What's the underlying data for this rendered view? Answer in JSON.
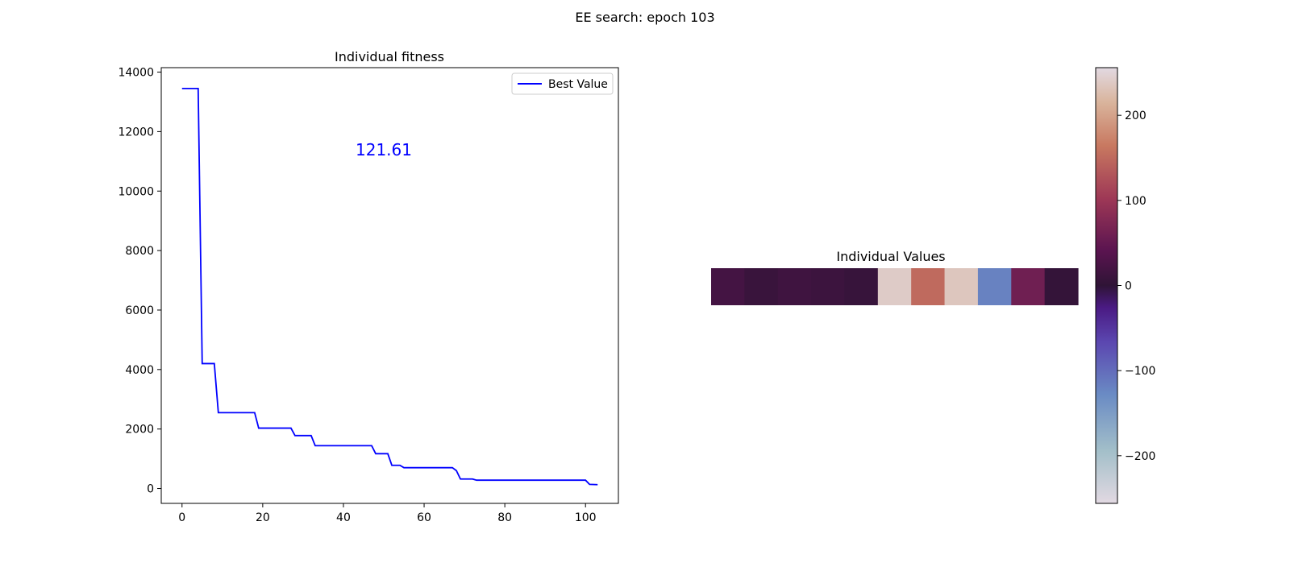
{
  "figure": {
    "suptitle": "EE search: epoch 103"
  },
  "chart_data": [
    {
      "type": "line",
      "title": "Individual fitness",
      "xlabel": "",
      "ylabel": "",
      "xlim": [
        -5.15,
        108.15
      ],
      "ylim": [
        -500,
        14150
      ],
      "xticks": [
        0,
        20,
        40,
        60,
        80,
        100
      ],
      "yticks": [
        0,
        2000,
        4000,
        6000,
        8000,
        10000,
        12000,
        14000
      ],
      "grid": false,
      "legend": {
        "position": "top-right"
      },
      "annotation": {
        "text": "121.61",
        "x": 50,
        "y": 11200,
        "color": "#0000ff"
      },
      "series": [
        {
          "name": "Best Value",
          "color": "#0000ff",
          "x": [
            0,
            4,
            5,
            8,
            9,
            18,
            19,
            27,
            28,
            32,
            33,
            47,
            48,
            51,
            52,
            54,
            55,
            67,
            68,
            69,
            72,
            73,
            100,
            101,
            103
          ],
          "y": [
            13450,
            13450,
            4200,
            4200,
            2550,
            2550,
            2030,
            2030,
            1780,
            1780,
            1440,
            1440,
            1170,
            1170,
            780,
            780,
            700,
            700,
            600,
            320,
            320,
            280,
            280,
            140,
            130
          ]
        }
      ]
    },
    {
      "type": "heatmap",
      "title": "Individual Values",
      "values": [
        [
          20,
          10,
          15,
          12,
          8,
          240,
          150,
          235,
          -120,
          60,
          5
        ]
      ],
      "colormap": "twilight",
      "colorbar": {
        "range": [
          -256,
          256
        ],
        "ticks": [
          -200,
          -100,
          0,
          100,
          200
        ],
        "orientation": "vertical",
        "position": "right"
      }
    }
  ]
}
